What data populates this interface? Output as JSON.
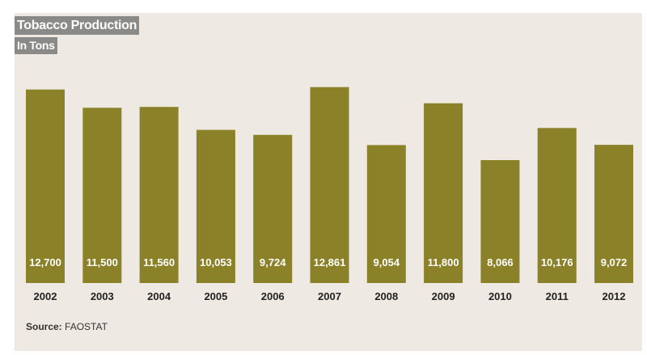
{
  "chart_data": {
    "type": "bar",
    "title": "Tobacco Production",
    "subtitle": "In Tons",
    "categories": [
      "2002",
      "2003",
      "2004",
      "2005",
      "2006",
      "2007",
      "2008",
      "2009",
      "2010",
      "2011",
      "2012"
    ],
    "values": [
      12700,
      11500,
      11560,
      10053,
      9724,
      12861,
      9054,
      11800,
      8066,
      10176,
      9072
    ],
    "value_labels": [
      "12,700",
      "11,500",
      "11,560",
      "10,053",
      "9,724",
      "12,861",
      "9,054",
      "11,800",
      "8,066",
      "10,176",
      "9,072"
    ],
    "bar_color": "#8b8128",
    "value_label_color": "#ffffff",
    "grid": false,
    "legend": "none"
  },
  "source": {
    "label": "Source:",
    "text": "FAOSTAT"
  },
  "colors": {
    "background": "#eeeae3",
    "title_tag": "#8a8a89"
  }
}
